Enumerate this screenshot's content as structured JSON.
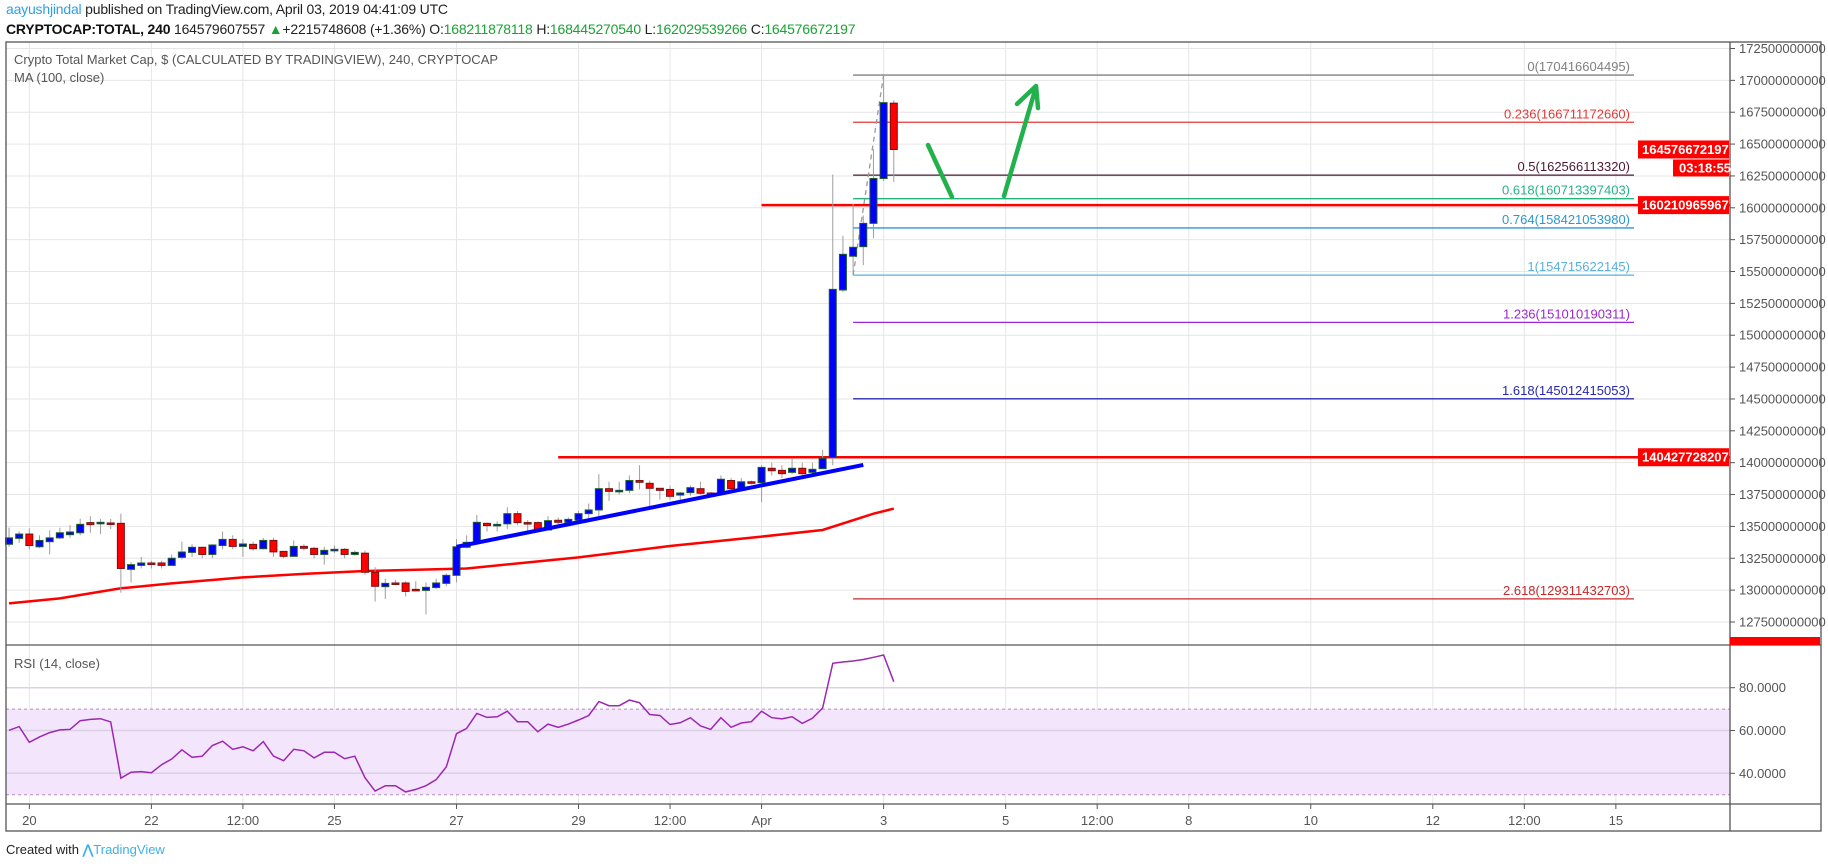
{
  "header": {
    "author": "aayushjindal",
    "published": "published on TradingView.com, April 03, 2019 04:41:09 UTC",
    "symbol": "CRYPTOCAP:TOTAL, 240",
    "last": "164579607557",
    "change": "+2215748608 (+1.36%)",
    "o_label": "O:",
    "o": "168211878118",
    "h_label": "H:",
    "h": "168445270540",
    "l_label": "L:",
    "l": "162029539266",
    "c_label": "C:",
    "c": "164576672197"
  },
  "footer": {
    "created_with": "Created with",
    "brand": "TradingView"
  },
  "chart_data": {
    "type": "candlestick",
    "title": "Crypto Total Market Cap, $ (CALCULATED BY TRADINGVIEW), 240, CRYPTOCAP",
    "ma_label": "MA (100, close)",
    "rsi_label": "RSI (14, close)",
    "colors": {
      "up": "#0000ff",
      "down": "#ff0000",
      "up_border": "#1e5b2a",
      "down_border": "#7a1010",
      "wick": "#9e9e9e",
      "ma": "#ff0000",
      "trend": "#0000ff",
      "rsi": "#9c27b0",
      "rsi_band": "#f3e5fc",
      "arrow": "#22b14c"
    },
    "price_axis": {
      "ticks": [
        172500000000,
        170000000000,
        167500000000,
        165000000000,
        162500000000,
        160000000000,
        157500000000,
        155000000000,
        152500000000,
        150000000000,
        147500000000,
        145000000000,
        142500000000,
        140000000000,
        137500000000,
        135000000000,
        132500000000,
        130000000000,
        127500000000
      ],
      "tick_labels": [
        "172500000000",
        "170000000000",
        "167500000000",
        "165000000000",
        "162500000000",
        "160000000000",
        "157500000000",
        "155000000000",
        "152500000000",
        "150000000000",
        "147500000000",
        "145000000000",
        "142500000000",
        "140000000000",
        "137500000000",
        "135000000000",
        "132500000000",
        "130000000000",
        "127500000000"
      ]
    },
    "last_price_label": "164576672197",
    "countdown": "03:18:55",
    "time_axis": [
      {
        "label": "20",
        "t": "2019-03-20 00:00"
      },
      {
        "label": "22",
        "t": "2019-03-22 00:00"
      },
      {
        "label": "12:00",
        "t": "2019-03-23 12:00"
      },
      {
        "label": "25",
        "t": "2019-03-25 00:00"
      },
      {
        "label": "27",
        "t": "2019-03-27 00:00"
      },
      {
        "label": "29",
        "t": "2019-03-29 00:00"
      },
      {
        "label": "12:00",
        "t": "2019-03-30 12:00"
      },
      {
        "label": "Apr",
        "t": "2019-04-01 00:00"
      },
      {
        "label": "3",
        "t": "2019-04-03 00:00"
      },
      {
        "label": "5",
        "t": "2019-04-05 00:00"
      },
      {
        "label": "12:00",
        "t": "2019-04-06 12:00"
      },
      {
        "label": "8",
        "t": "2019-04-08 00:00"
      },
      {
        "label": "10",
        "t": "2019-04-10 00:00"
      },
      {
        "label": "12",
        "t": "2019-04-12 00:00"
      },
      {
        "label": "12:00",
        "t": "2019-04-13 12:00"
      },
      {
        "label": "15",
        "t": "2019-04-15 00:00"
      }
    ],
    "rsi_axis": [
      {
        "value": 80,
        "label": "80.0000"
      },
      {
        "value": 60,
        "label": "60.0000"
      },
      {
        "value": 40,
        "label": "40.0000"
      }
    ],
    "rsi_bands": [
      70,
      30
    ],
    "candles_fields": [
      "t",
      "open",
      "high",
      "low",
      "close",
      "rsi"
    ],
    "candles": [
      [
        "2019-03-19 16:00",
        133600000000.0,
        134900000000.0,
        133400000000.0,
        134100000000.0,
        60.1
      ],
      [
        "2019-03-19 20:00",
        134060000000.0,
        134600000000.0,
        133700000000.0,
        134400000000.0,
        61.8
      ],
      [
        "2019-03-20 00:00",
        134400000000.0,
        134850000000.0,
        133200000000.0,
        133500000000.0,
        54.5
      ],
      [
        "2019-03-20 04:00",
        133400000000.0,
        134300000000.0,
        133300000000.0,
        133900000000.0,
        57
      ],
      [
        "2019-03-20 08:00",
        133800000000.0,
        134700000000.0,
        132800000000.0,
        134100000000.0,
        59
      ],
      [
        "2019-03-20 12:00",
        134100000000.0,
        134900000000.0,
        134000000000.0,
        134500000000.0,
        60.3
      ],
      [
        "2019-03-20 16:00",
        134350000000.0,
        135100000000.0,
        134100000000.0,
        134560000000.0,
        60.5
      ],
      [
        "2019-03-20 20:00",
        134500000000.0,
        135600000000.0,
        134300000000.0,
        135160000000.0,
        64.6
      ],
      [
        "2019-03-21 00:00",
        135300000000.0,
        135800000000.0,
        134500000000.0,
        135140000000.0,
        65.2
      ],
      [
        "2019-03-21 04:00",
        135220000000.0,
        135600000000.0,
        134400000000.0,
        135320000000.0,
        65.5
      ],
      [
        "2019-03-21 08:00",
        135270000000.0,
        135600000000.0,
        134800000000.0,
        135220000000.0,
        64
      ],
      [
        "2019-03-21 12:00",
        135240000000.0,
        136000000000.0,
        129800000000.0,
        131700000000.0,
        37.7
      ],
      [
        "2019-03-21 16:00",
        131630000000.0,
        132200000000.0,
        130600000000.0,
        132000000000.0,
        40.5
      ],
      [
        "2019-03-21 20:00",
        131940000000.0,
        132600000000.0,
        131700000000.0,
        132130000000.0,
        40.8
      ],
      [
        "2019-03-22 00:00",
        132130000000.0,
        132300000000.0,
        131700000000.0,
        132080000000.0,
        40.3
      ],
      [
        "2019-03-22 04:00",
        132130000000.0,
        132300000000.0,
        131700000000.0,
        131940000000.0,
        44
      ],
      [
        "2019-03-22 08:00",
        131940000000.0,
        132800000000.0,
        131900000000.0,
        132500000000.0,
        46.7
      ],
      [
        "2019-03-22 12:00",
        132570000000.0,
        133800000000.0,
        132400000000.0,
        132990000000.0,
        51
      ],
      [
        "2019-03-22 16:00",
        132960000000.0,
        133600000000.0,
        132600000000.0,
        133360000000.0,
        47.5
      ],
      [
        "2019-03-22 20:00",
        133360000000.0,
        133400000000.0,
        132500000000.0,
        132800000000.0,
        48
      ],
      [
        "2019-03-23 00:00",
        132800000000.0,
        133600000000.0,
        132500000000.0,
        133540000000.0,
        53
      ],
      [
        "2019-03-23 04:00",
        133500000000.0,
        134600000000.0,
        133200000000.0,
        133980000000.0,
        55
      ],
      [
        "2019-03-23 08:00",
        133980000000.0,
        134300000000.0,
        133200000000.0,
        133430000000.0,
        51.2
      ],
      [
        "2019-03-23 12:00",
        133430000000.0,
        134000000000.0,
        132600000000.0,
        133620000000.0,
        52.4
      ],
      [
        "2019-03-23 16:00",
        133590000000.0,
        133800000000.0,
        133100000000.0,
        133250000000.0,
        50.5
      ],
      [
        "2019-03-23 20:00",
        133250000000.0,
        134100000000.0,
        133200000000.0,
        133900000000.0,
        54.8
      ],
      [
        "2019-03-24 00:00",
        133900000000.0,
        134100000000.0,
        132600000000.0,
        133000000000.0,
        48.1
      ],
      [
        "2019-03-24 04:00",
        133040000000.0,
        133040000000.0,
        132500000000.0,
        132650000000.0,
        45.9
      ],
      [
        "2019-03-24 08:00",
        132650000000.0,
        133900000000.0,
        132650000000.0,
        133430000000.0,
        51.2
      ],
      [
        "2019-03-24 12:00",
        133430000000.0,
        133600000000.0,
        133100000000.0,
        133280000000.0,
        50.5
      ],
      [
        "2019-03-24 16:00",
        133280000000.0,
        133400000000.0,
        132500000000.0,
        132800000000.0,
        47.2
      ],
      [
        "2019-03-24 20:00",
        132800000000.0,
        133400000000.0,
        132000000000.0,
        133120000000.0,
        49.8
      ],
      [
        "2019-03-25 00:00",
        133100000000.0,
        133500000000.0,
        132900000000.0,
        133200000000.0,
        49.8
      ],
      [
        "2019-03-25 04:00",
        133200000000.0,
        133300000000.0,
        132500000000.0,
        132800000000.0,
        46.8
      ],
      [
        "2019-03-25 08:00",
        132800000000.0,
        133100000000.0,
        132700000000.0,
        132960000000.0,
        48
      ],
      [
        "2019-03-25 12:00",
        132900000000.0,
        133100000000.0,
        131200000000.0,
        131400000000.0,
        38
      ],
      [
        "2019-03-25 16:00",
        131400000000.0,
        131800000000.0,
        129100000000.0,
        130300000000.0,
        31.7
      ],
      [
        "2019-03-25 20:00",
        130270000000.0,
        130900000000.0,
        129300000000.0,
        130530000000.0,
        34.2
      ],
      [
        "2019-03-26 00:00",
        130560000000.0,
        130800000000.0,
        130400000000.0,
        130500000000.0,
        34.2
      ],
      [
        "2019-03-26 04:00",
        130560000000.0,
        130700000000.0,
        129500000000.0,
        129900000000.0,
        31.3
      ],
      [
        "2019-03-26 08:00",
        130060000000.0,
        130700000000.0,
        129900000000.0,
        129980000000.0,
        32.5
      ],
      [
        "2019-03-26 12:00",
        129980000000.0,
        130600000000.0,
        128100000000.0,
        130220000000.0,
        34.2
      ],
      [
        "2019-03-26 16:00",
        130200000000.0,
        130900000000.0,
        130100000000.0,
        130560000000.0,
        37
      ],
      [
        "2019-03-26 20:00",
        130530000000.0,
        131300000000.0,
        130300000000.0,
        131160000000.0,
        43
      ],
      [
        "2019-03-27 00:00",
        131160000000.0,
        134000000000.0,
        130600000000.0,
        133400000000.0,
        58.5
      ],
      [
        "2019-03-27 04:00",
        133360000000.0,
        134300000000.0,
        133300000000.0,
        133750000000.0,
        61
      ],
      [
        "2019-03-27 08:00",
        133750000000.0,
        135900000000.0,
        133700000000.0,
        135320000000.0,
        68
      ],
      [
        "2019-03-27 12:00",
        135240000000.0,
        135300000000.0,
        134600000000.0,
        135060000000.0,
        66.1
      ],
      [
        "2019-03-27 16:00",
        135100000000.0,
        135400000000.0,
        134600000000.0,
        135160000000.0,
        66.4
      ],
      [
        "2019-03-27 20:00",
        135200000000.0,
        136500000000.0,
        134800000000.0,
        136000000000.0,
        69
      ],
      [
        "2019-03-28 00:00",
        136000000000.0,
        136200000000.0,
        135100000000.0,
        135300000000.0,
        64.1
      ],
      [
        "2019-03-28 04:00",
        135300000000.0,
        135500000000.0,
        134600000000.0,
        135240000000.0,
        64.1
      ],
      [
        "2019-03-28 08:00",
        135300000000.0,
        135400000000.0,
        134600000000.0,
        134720000000.0,
        59.4
      ],
      [
        "2019-03-28 12:00",
        134720000000.0,
        135800000000.0,
        134700000000.0,
        135450000000.0,
        63
      ],
      [
        "2019-03-28 16:00",
        135480000000.0,
        135700000000.0,
        135100000000.0,
        135320000000.0,
        61.5
      ],
      [
        "2019-03-28 20:00",
        135320000000.0,
        135700000000.0,
        135100000000.0,
        135550000000.0,
        63
      ],
      [
        "2019-03-29 00:00",
        135500000000.0,
        136200000000.0,
        135400000000.0,
        136000000000.0,
        64.9
      ],
      [
        "2019-03-29 04:00",
        136000000000.0,
        136800000000.0,
        135500000000.0,
        136290000000.0,
        67
      ],
      [
        "2019-03-29 08:00",
        136290000000.0,
        139100000000.0,
        135800000000.0,
        137960000000.0,
        73.5
      ],
      [
        "2019-03-29 12:00",
        137960000000.0,
        138500000000.0,
        137000000000.0,
        137750000000.0,
        71.6
      ],
      [
        "2019-03-29 16:00",
        137800000000.0,
        138500000000.0,
        137500000000.0,
        137830000000.0,
        71.6
      ],
      [
        "2019-03-29 20:00",
        137830000000.0,
        139000000000.0,
        137600000000.0,
        138600000000.0,
        74.2
      ],
      [
        "2019-03-30 00:00",
        138600000000.0,
        139800000000.0,
        137900000000.0,
        138460000000.0,
        73
      ],
      [
        "2019-03-30 04:00",
        138380000000.0,
        138600000000.0,
        136600000000.0,
        137990000000.0,
        67.5
      ],
      [
        "2019-03-30 08:00",
        137990000000.0,
        138000000000.0,
        137100000000.0,
        137830000000.0,
        67
      ],
      [
        "2019-03-30 12:00",
        137900000000.0,
        138200000000.0,
        137100000000.0,
        137360000000.0,
        62.8
      ],
      [
        "2019-03-30 16:00",
        137460000000.0,
        137700000000.0,
        136800000000.0,
        137620000000.0,
        63.6
      ],
      [
        "2019-03-30 20:00",
        137650000000.0,
        138200000000.0,
        137400000000.0,
        138040000000.0,
        66
      ],
      [
        "2019-03-31 00:00",
        137960000000.0,
        138500000000.0,
        137500000000.0,
        137600000000.0,
        62.1
      ],
      [
        "2019-03-31 04:00",
        137620000000.0,
        137700000000.0,
        137500000000.0,
        137500000000.0,
        60.5
      ],
      [
        "2019-03-31 08:00",
        137500000000.0,
        139000000000.0,
        137400000000.0,
        138700000000.0,
        66
      ],
      [
        "2019-03-31 12:00",
        138600000000.0,
        138800000000.0,
        137900000000.0,
        137960000000.0,
        61.5
      ],
      [
        "2019-03-31 16:00",
        138000000000.0,
        138800000000.0,
        137900000000.0,
        138500000000.0,
        63.5
      ],
      [
        "2019-03-31 20:00",
        138500000000.0,
        138600000000.0,
        138300000000.0,
        138430000000.0,
        64.1
      ],
      [
        "2019-04-01 00:00",
        138430000000.0,
        139800000000.0,
        136900000000.0,
        139630000000.0,
        69
      ],
      [
        "2019-04-01 04:00",
        139560000000.0,
        140000000000.0,
        139000000000.0,
        139370000000.0,
        66
      ],
      [
        "2019-04-01 08:00",
        139400000000.0,
        139800000000.0,
        138800000000.0,
        139140000000.0,
        65.4
      ],
      [
        "2019-04-01 12:00",
        139240000000.0,
        140300000000.0,
        139100000000.0,
        139560000000.0,
        66.4
      ],
      [
        "2019-04-01 16:00",
        139560000000.0,
        140000000000.0,
        139000000000.0,
        139140000000.0,
        63.3
      ],
      [
        "2019-04-01 20:00",
        139240000000.0,
        140000000000.0,
        139000000000.0,
        139480000000.0,
        65.7
      ],
      [
        "2019-04-02 00:00",
        139530000000.0,
        141000000000.0,
        139500000000.0,
        140340000000.0,
        70.5
      ],
      [
        "2019-04-02 04:00",
        140400000000.0,
        162600000000.0,
        139800000000.0,
        153600000000.0,
        91.4
      ],
      [
        "2019-04-02 08:00",
        153550000000.0,
        157800000000.0,
        153400000000.0,
        156350000000.0,
        92
      ],
      [
        "2019-04-02 12:00",
        156200000000.0,
        160300000000.0,
        154800000000.0,
        156900000000.0,
        92.5
      ],
      [
        "2019-04-02 16:00",
        156950000000.0,
        159400000000.0,
        155500000000.0,
        158780000000.0,
        93.2
      ],
      [
        "2019-04-02 20:00",
        158780000000.0,
        164600000000.0,
        157600000000.0,
        162300000000.0,
        94.2
      ],
      [
        "2019-04-03 00:00",
        162300000000.0,
        170400000000.0,
        162100000000.0,
        168250000000.0,
        95.3
      ],
      [
        "2019-04-03 04:00",
        168211878118.0,
        168445270540.0,
        162029539266.0,
        164576672197.0,
        82.8
      ]
    ],
    "ma": [
      [
        "2019-03-19 16:00",
        128960000000.0
      ],
      [
        "2019-03-20 12:00",
        129350000000.0
      ],
      [
        "2019-03-21 12:00",
        130140000000.0
      ],
      [
        "2019-03-22 08:00",
        130530000000.0
      ],
      [
        "2019-03-23 12:00",
        131000000000.0
      ],
      [
        "2019-03-24 12:00",
        131270000000.0
      ],
      [
        "2019-03-25 12:00",
        131500000000.0
      ],
      [
        "2019-03-27 04:00",
        131700000000.0
      ],
      [
        "2019-03-29 00:00",
        132570000000.0
      ],
      [
        "2019-03-30 12:00",
        133460000000.0
      ],
      [
        "2019-04-01 00:00",
        134200000000.0
      ],
      [
        "2019-04-02 00:00",
        134720000000.0
      ],
      [
        "2019-04-02 20:00",
        136000000000.0
      ],
      [
        "2019-04-03 04:00",
        136400000000.0
      ]
    ],
    "fib": {
      "start": "2019-04-02 12:00",
      "swing_low": [
        "2019-04-02 12:00",
        154715622145
      ],
      "swing_high": [
        "2019-04-03 00:00",
        170416604495
      ],
      "levels": [
        {
          "label": "0(170416604495)",
          "value": 170416604495,
          "color": "#808080"
        },
        {
          "label": "0.236(166711172660)",
          "value": 166711172660,
          "color": "#e53935"
        },
        {
          "label": "0.5(162566113320)",
          "value": 162566113320,
          "color": "#4a1a30"
        },
        {
          "label": "0.618(160713397403)",
          "value": 160713397403,
          "color": "#26b37f"
        },
        {
          "label": "0.764(158421053980)",
          "value": 158421053980,
          "color": "#2a98d0"
        },
        {
          "label": "1(154715622145)",
          "value": 154715622145,
          "color": "#5ab0dc"
        },
        {
          "label": "1.236(151010190311)",
          "value": 151010190311,
          "color": "#9c27d0"
        },
        {
          "label": "1.618(145012415053)",
          "value": 145012415053,
          "color": "#2828b0"
        },
        {
          "label": "2.618(129311432703)",
          "value": 129311432703,
          "color": "#c62828"
        }
      ]
    },
    "hlines": [
      {
        "value": 160210965967,
        "label": "160210965967",
        "start": "2019-04-01 00:00",
        "color": "#ff0000"
      },
      {
        "value": 140427728207,
        "label": "140427728207",
        "start": "2019-03-28 16:00",
        "color": "#ff0000"
      }
    ],
    "trendline": {
      "from": [
        "2019-03-27 00:00",
        133400000000.0
      ],
      "to": [
        "2019-04-02 16:00",
        139820000000.0
      ],
      "color": "#0000ff"
    }
  }
}
